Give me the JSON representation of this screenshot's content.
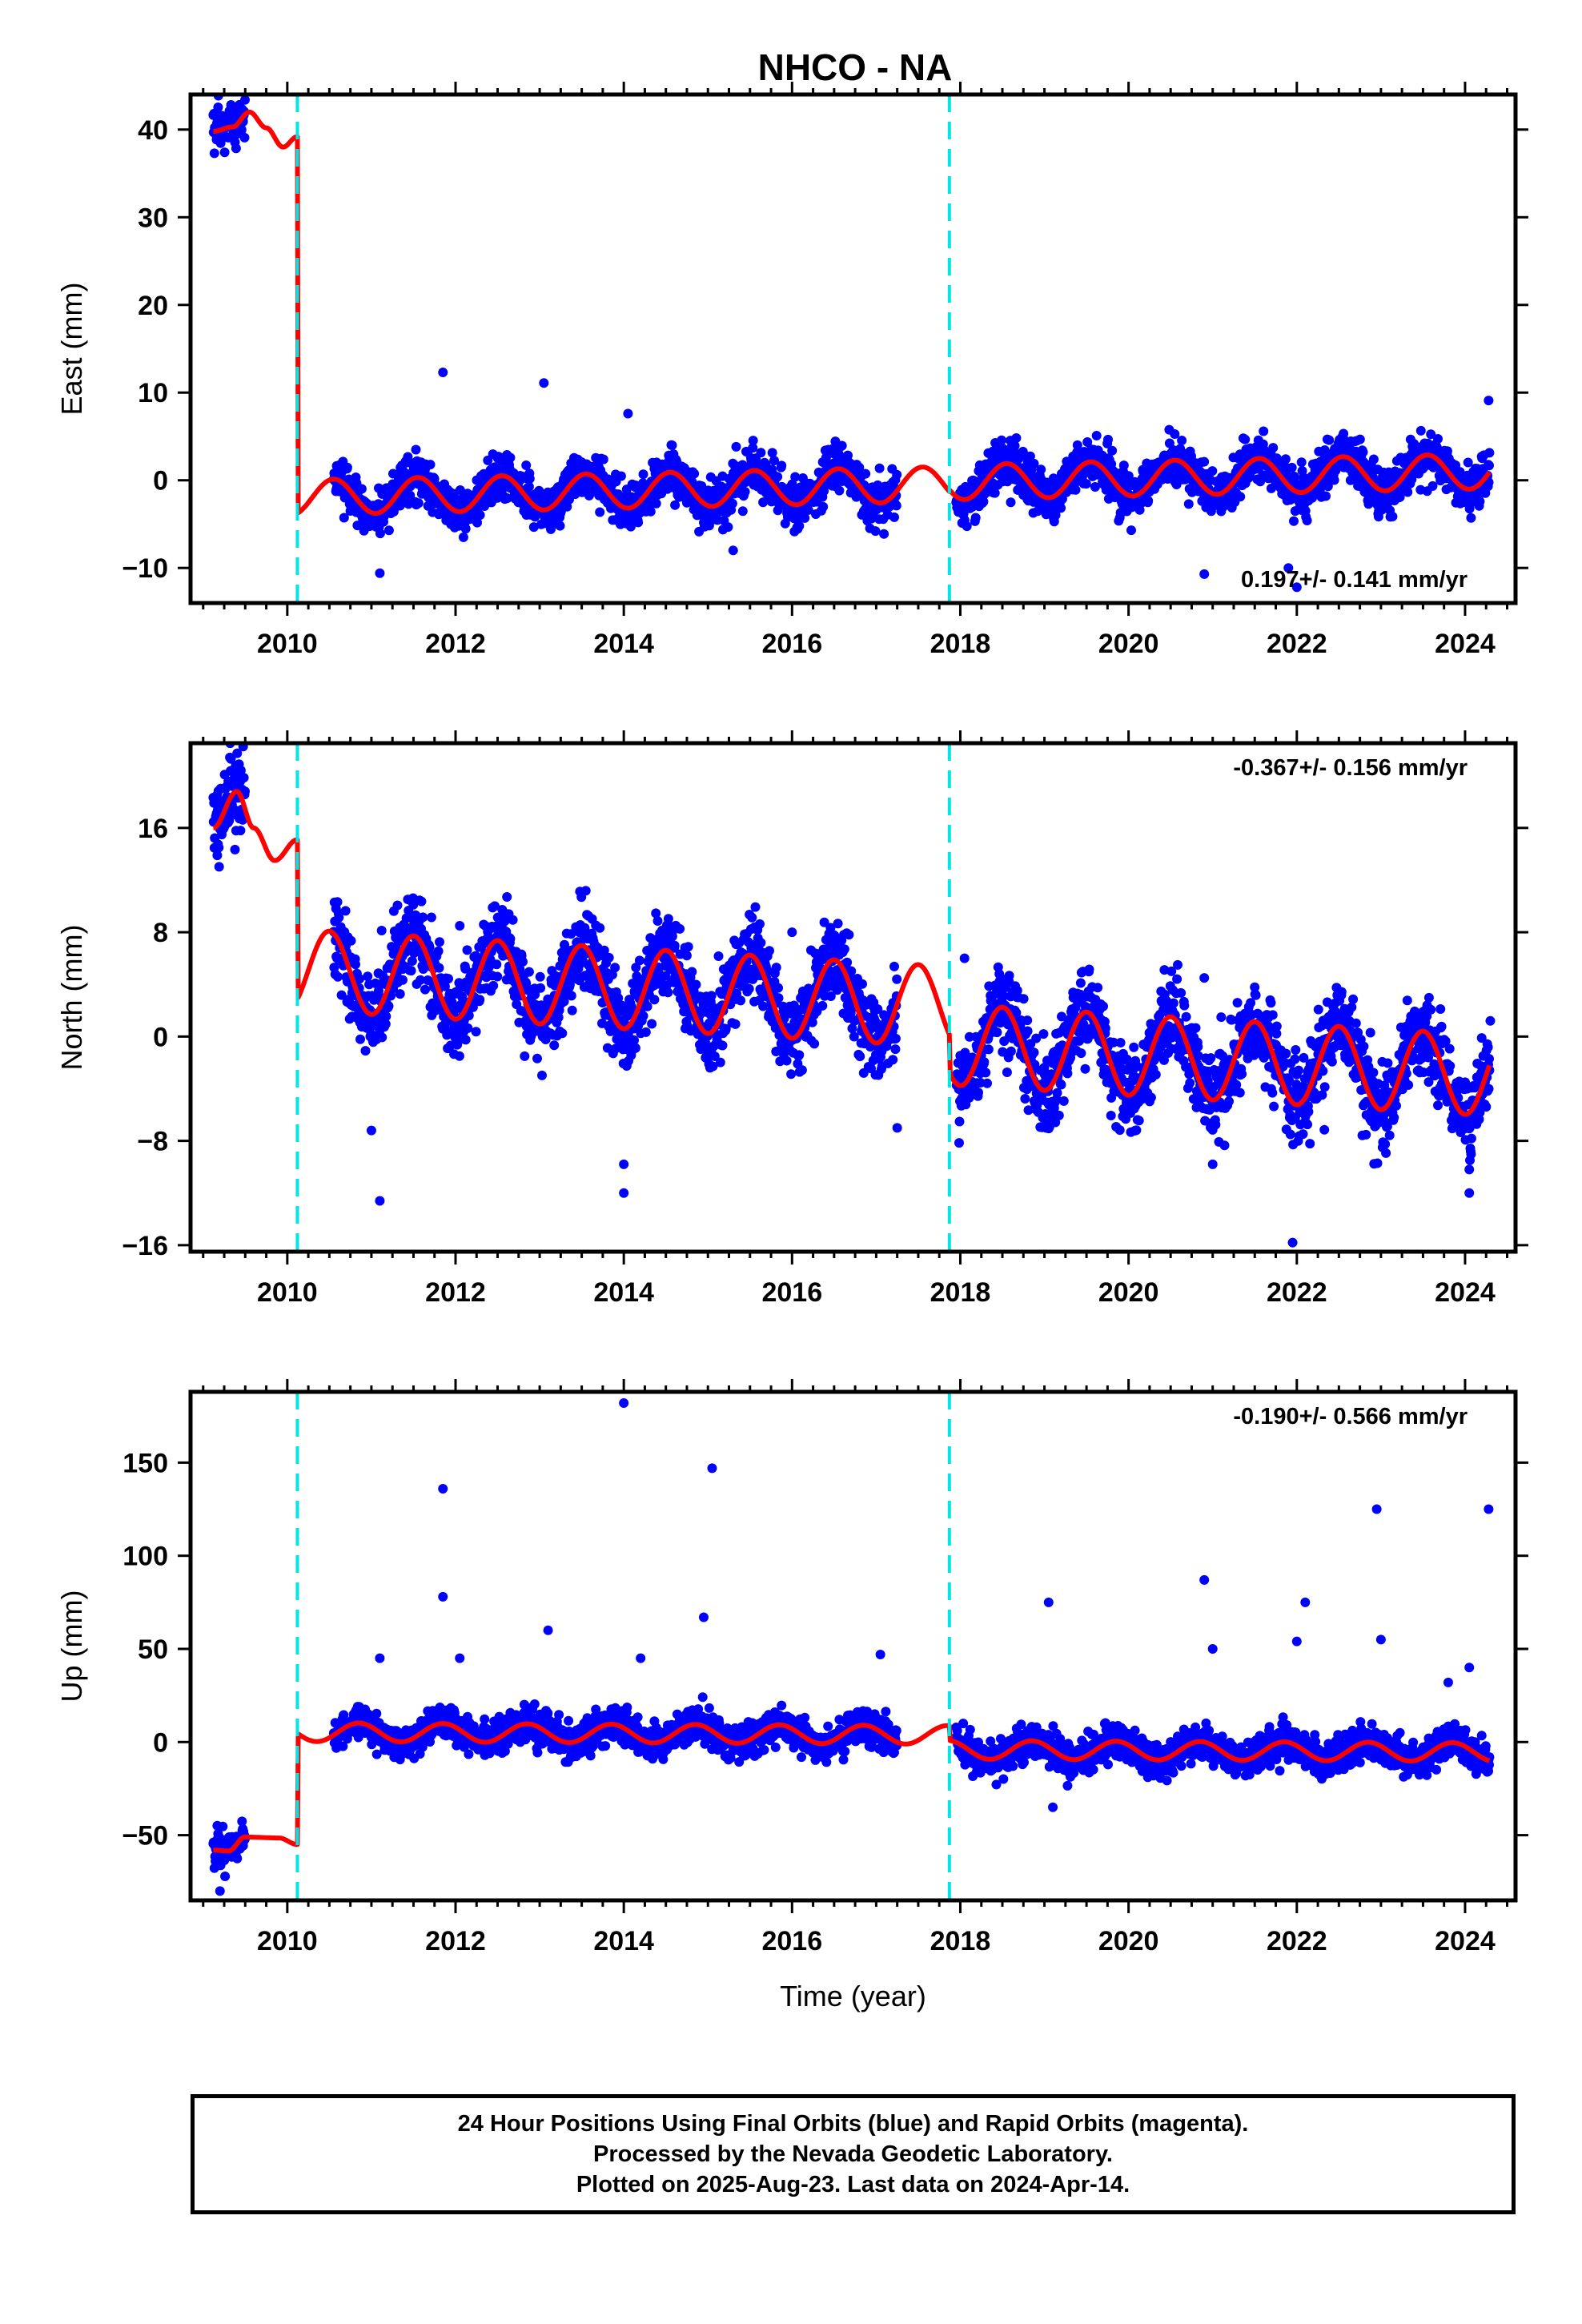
{
  "title": "NHCO - NA",
  "footer": {
    "line1": "24 Hour Positions Using Final Orbits (blue) and Rapid Orbits (magenta).",
    "line2": "Processed by the Nevada Geodetic Laboratory.",
    "line3": "Plotted on 2025-Aug-23. Last data on 2024-Apr-14."
  },
  "colors": {
    "final_orbits": "#0000ff",
    "rapid_orbits": "#ff00ff",
    "model": "#ff0000",
    "offsets": "#00e5e5",
    "frame": "#000000"
  },
  "chart_data": [
    {
      "type": "scatter",
      "component": "east",
      "ylabel": "East (mm)",
      "xlabel": "",
      "xlim": [
        2008.85,
        2024.6
      ],
      "ylim": [
        -14,
        44
      ],
      "xticks": [
        2010,
        2012,
        2014,
        2016,
        2018,
        2020,
        2022,
        2024
      ],
      "yticks": [
        -10,
        0,
        10,
        20,
        30,
        40
      ],
      "rate_label": "0.197+/- 0.141 mm/yr",
      "rate_position": "bottom-right",
      "offsets": [
        2010.12,
        2017.87
      ],
      "model": {
        "rate": 0.197,
        "amplitude": 2.0,
        "phase_peak": 0.55,
        "segments": [
          {
            "start": 2009.12,
            "end": 2010.12,
            "level": 40.0,
            "shape": [
              [
                2009.12,
                39.8
              ],
              [
                2009.35,
                40.3
              ],
              [
                2009.55,
                42.0
              ],
              [
                2009.75,
                40.2
              ],
              [
                2009.95,
                38.0
              ],
              [
                2010.12,
                39.2
              ]
            ]
          },
          {
            "start": 2010.12,
            "end": 2017.87,
            "level": -0.6
          },
          {
            "start": 2017.87,
            "end": 2024.29,
            "level": -0.4
          }
        ]
      },
      "data_span": [
        2009.12,
        2024.29
      ],
      "gaps": [
        [
          2009.5,
          2010.55
        ],
        [
          2017.25,
          2017.95
        ]
      ],
      "scatter_sd": 1.3,
      "outliers": [
        [
          2011.85,
          12.3
        ],
        [
          2013.05,
          11.1
        ],
        [
          2014.05,
          7.6
        ],
        [
          2015.3,
          -8.0
        ],
        [
          2011.1,
          -10.6
        ],
        [
          2022.0,
          -12.2
        ],
        [
          2021.9,
          -10.0
        ],
        [
          2020.9,
          -10.7
        ],
        [
          2024.28,
          9.1
        ]
      ]
    },
    {
      "type": "scatter",
      "component": "north",
      "ylabel": "North (mm)",
      "xlabel": "",
      "xlim": [
        2008.85,
        2024.6
      ],
      "ylim": [
        -16.5,
        22.5
      ],
      "xticks": [
        2010,
        2012,
        2014,
        2016,
        2018,
        2020,
        2022,
        2024
      ],
      "yticks": [
        -16,
        -8,
        0,
        8,
        16
      ],
      "rate_label": "-0.367+/- 0.156 mm/yr",
      "rate_position": "top-right",
      "offsets": [
        2010.12,
        2017.87
      ],
      "model": {
        "rate": -0.367,
        "amplitude": 3.1,
        "phase_peak": 0.5,
        "segments": [
          {
            "start": 2009.12,
            "end": 2010.12,
            "level": 16.0,
            "shape": [
              [
                2009.12,
                16.0
              ],
              [
                2009.4,
                18.8
              ],
              [
                2009.6,
                16.0
              ],
              [
                2009.85,
                13.5
              ],
              [
                2010.12,
                15.1
              ]
            ]
          },
          {
            "start": 2010.12,
            "end": 2017.87,
            "level": 2.6
          },
          {
            "start": 2017.87,
            "end": 2024.29,
            "level": -0.3
          }
        ]
      },
      "data_span": [
        2009.12,
        2024.29
      ],
      "gaps": [
        [
          2009.5,
          2010.55
        ],
        [
          2017.25,
          2017.95
        ]
      ],
      "scatter_sd": 1.6,
      "outliers": [
        [
          2011.1,
          -12.6
        ],
        [
          2011.0,
          -7.2
        ],
        [
          2012.05,
          8.5
        ],
        [
          2014.0,
          -9.8
        ],
        [
          2014.0,
          -12.0
        ],
        [
          2016.0,
          8.0
        ],
        [
          2017.25,
          -7.0
        ],
        [
          2020.9,
          4.5
        ],
        [
          2021.0,
          -9.8
        ],
        [
          2021.95,
          -15.8
        ],
        [
          2024.05,
          -10.2
        ],
        [
          2024.05,
          -12.0
        ],
        [
          2024.3,
          1.2
        ],
        [
          2018.05,
          6.0
        ]
      ]
    },
    {
      "type": "scatter",
      "component": "up",
      "ylabel": "Up (mm)",
      "xlabel": "Time (year)",
      "xlim": [
        2008.85,
        2024.6
      ],
      "ylim": [
        -85,
        188
      ],
      "xticks": [
        2010,
        2012,
        2014,
        2016,
        2018,
        2020,
        2022,
        2024
      ],
      "yticks": [
        -50,
        0,
        50,
        100,
        150
      ],
      "rate_label": "-0.190+/- 0.566 mm/yr",
      "rate_position": "top-right",
      "offsets": [
        2010.12,
        2017.87
      ],
      "model": {
        "rate": -0.19,
        "amplitude": 5.0,
        "phase_peak": 0.85,
        "segments": [
          {
            "start": 2009.12,
            "end": 2010.12,
            "level": -52.0,
            "shape": [
              [
                2009.12,
                -58.0
              ],
              [
                2009.3,
                -58.5
              ],
              [
                2009.5,
                -51.0
              ],
              [
                2009.9,
                -51.5
              ],
              [
                2010.12,
                -55.0
              ]
            ]
          },
          {
            "start": 2010.12,
            "end": 2017.87,
            "level": 4.0
          },
          {
            "start": 2017.87,
            "end": 2024.29,
            "level": -4.0
          }
        ]
      },
      "data_span": [
        2009.12,
        2024.29
      ],
      "gaps": [
        [
          2009.5,
          2010.55
        ],
        [
          2017.25,
          2017.95
        ]
      ],
      "scatter_sd": 4.5,
      "outliers": [
        [
          2011.85,
          136.0
        ],
        [
          2011.85,
          78.0
        ],
        [
          2012.05,
          45.0
        ],
        [
          2011.1,
          45.0
        ],
        [
          2013.1,
          60.0
        ],
        [
          2014.0,
          182.0
        ],
        [
          2014.2,
          45.0
        ],
        [
          2014.95,
          67.0
        ],
        [
          2015.05,
          147.0
        ],
        [
          2017.05,
          47.0
        ],
        [
          2019.05,
          75.0
        ],
        [
          2019.1,
          -35.0
        ],
        [
          2020.9,
          87.0
        ],
        [
          2021.0,
          50.0
        ],
        [
          2022.0,
          54.0
        ],
        [
          2022.1,
          75.0
        ],
        [
          2022.95,
          125.0
        ],
        [
          2023.0,
          55.0
        ],
        [
          2024.28,
          125.0
        ],
        [
          2024.05,
          40.0
        ],
        [
          2009.2,
          -80.0
        ],
        [
          2023.8,
          32.0
        ]
      ]
    }
  ]
}
